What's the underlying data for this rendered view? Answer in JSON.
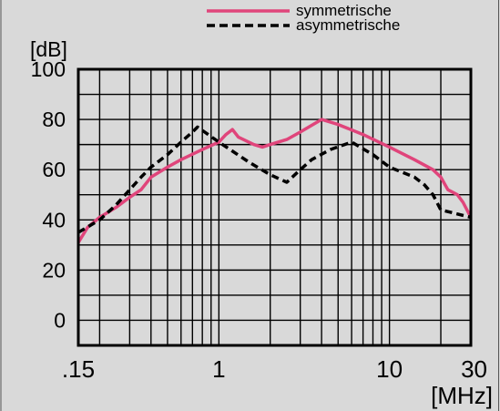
{
  "chart_data": {
    "type": "line",
    "x_scale": "log",
    "xlim": [
      0.15,
      30
    ],
    "ylim": [
      -10,
      100
    ],
    "grid": true,
    "legend_position": "top-right",
    "ylabel": "[dB]",
    "xlabel": "[MHz]",
    "x_ticks": [
      {
        "value": 0.15,
        "label": ".15"
      },
      {
        "value": 1,
        "label": "1"
      },
      {
        "value": 10,
        "label": "10"
      },
      {
        "value": 30,
        "label": "30"
      }
    ],
    "y_ticks": [
      {
        "value": 0,
        "label": "0"
      },
      {
        "value": 20,
        "label": "20"
      },
      {
        "value": 40,
        "label": "40"
      },
      {
        "value": 60,
        "label": "60"
      },
      {
        "value": 80,
        "label": "80"
      },
      {
        "value": 100,
        "label": "100"
      }
    ],
    "series": [
      {
        "name": "symmetrische",
        "color": "#e0457b",
        "style": "solid",
        "points": [
          [
            0.15,
            31
          ],
          [
            0.17,
            37
          ],
          [
            0.2,
            41
          ],
          [
            0.25,
            45
          ],
          [
            0.3,
            49
          ],
          [
            0.35,
            52
          ],
          [
            0.4,
            57
          ],
          [
            0.5,
            61
          ],
          [
            0.6,
            64
          ],
          [
            0.8,
            68
          ],
          [
            1.0,
            71
          ],
          [
            1.1,
            74
          ],
          [
            1.2,
            76
          ],
          [
            1.3,
            73
          ],
          [
            1.6,
            70
          ],
          [
            1.8,
            69
          ],
          [
            2.0,
            70
          ],
          [
            2.5,
            72
          ],
          [
            3.0,
            75
          ],
          [
            4.0,
            80
          ],
          [
            5.0,
            78
          ],
          [
            7.0,
            74
          ],
          [
            10.0,
            69
          ],
          [
            14.0,
            64
          ],
          [
            18.0,
            60
          ],
          [
            20.0,
            57
          ],
          [
            22.0,
            52
          ],
          [
            25.0,
            50
          ],
          [
            27.0,
            47
          ],
          [
            30.0,
            41
          ]
        ]
      },
      {
        "name": "asymmetrische",
        "color": "#000000",
        "style": "dashed",
        "points": [
          [
            0.15,
            35
          ],
          [
            0.2,
            40
          ],
          [
            0.25,
            46
          ],
          [
            0.3,
            52
          ],
          [
            0.35,
            57
          ],
          [
            0.4,
            61
          ],
          [
            0.5,
            66
          ],
          [
            0.6,
            71
          ],
          [
            0.7,
            75
          ],
          [
            0.75,
            77
          ],
          [
            1.0,
            71
          ],
          [
            1.5,
            63
          ],
          [
            2.0,
            58
          ],
          [
            2.5,
            55
          ],
          [
            3.0,
            60
          ],
          [
            3.5,
            64
          ],
          [
            4.5,
            68
          ],
          [
            6.0,
            71
          ],
          [
            8.0,
            66
          ],
          [
            10.0,
            61
          ],
          [
            14.0,
            57
          ],
          [
            16.0,
            54
          ],
          [
            18.0,
            50
          ],
          [
            20.0,
            44
          ],
          [
            30.0,
            41
          ]
        ]
      }
    ]
  }
}
